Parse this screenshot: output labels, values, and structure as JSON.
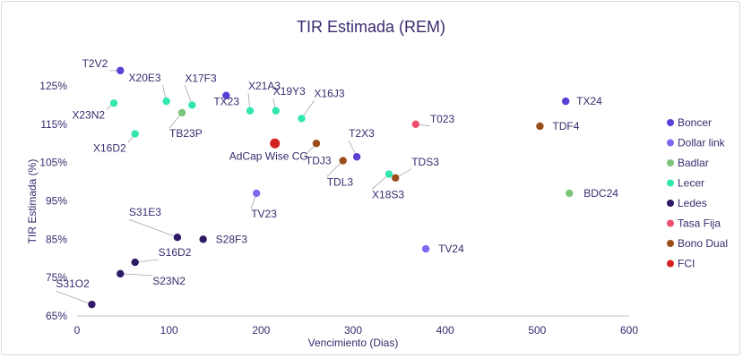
{
  "chart_data": {
    "type": "scatter",
    "title": "TIR Estimada (REM)",
    "xlabel": "Vencimiento (Dias)",
    "ylabel": "TIR Estimada (%)",
    "xlim": [
      0,
      600
    ],
    "ylim": [
      65,
      130
    ],
    "xticks": [
      0,
      100,
      200,
      300,
      400,
      500,
      600
    ],
    "xtick_labels": [
      "0",
      "100",
      "200",
      "300",
      "400",
      "500",
      "600"
    ],
    "yticks": [
      65,
      75,
      85,
      95,
      105,
      115,
      125
    ],
    "ytick_labels": [
      "65%",
      "75%",
      "85%",
      "95%",
      "105%",
      "115%",
      "125%"
    ],
    "grid": false,
    "legend_position": "right",
    "series": [
      {
        "name": "Boncer",
        "color": "#5b3fd6",
        "points": [
          {
            "label": "T2V2",
            "x": 47,
            "y": 129
          },
          {
            "label": "TX23",
            "x": 162,
            "y": 122.5
          },
          {
            "label": "T2X3",
            "x": 304,
            "y": 106.5
          },
          {
            "label": "TX24",
            "x": 531,
            "y": 121
          }
        ]
      },
      {
        "name": "Dollar link",
        "color": "#7b6bf0",
        "points": [
          {
            "label": "TV23",
            "x": 195,
            "y": 97
          },
          {
            "label": "TV24",
            "x": 379,
            "y": 82.5
          }
        ]
      },
      {
        "name": "Badlar",
        "color": "#7dc47b",
        "points": [
          {
            "label": "TB23P",
            "x": 114,
            "y": 118
          },
          {
            "label": "BDC24",
            "x": 535,
            "y": 97
          }
        ]
      },
      {
        "name": "Lecer",
        "color": "#33e6b0",
        "points": [
          {
            "label": "X23N2",
            "x": 40,
            "y": 120.5
          },
          {
            "label": "X20E3",
            "x": 97,
            "y": 121
          },
          {
            "label": "X17F3",
            "x": 125,
            "y": 120
          },
          {
            "label": "X16D2",
            "x": 63,
            "y": 112.5
          },
          {
            "label": "X21A3",
            "x": 188,
            "y": 118.5
          },
          {
            "label": "X19Y3",
            "x": 216,
            "y": 118.5
          },
          {
            "label": "X16J3",
            "x": 244,
            "y": 116.5
          },
          {
            "label": "X18S3",
            "x": 339,
            "y": 102
          }
        ]
      },
      {
        "name": "Ledes",
        "color": "#2e1a66",
        "points": [
          {
            "label": "S31E3",
            "x": 109,
            "y": 85.5
          },
          {
            "label": "S28F3",
            "x": 137,
            "y": 85
          },
          {
            "label": "S16D2",
            "x": 63,
            "y": 79
          },
          {
            "label": "S23N2",
            "x": 47,
            "y": 76
          },
          {
            "label": "S31O2",
            "x": 16,
            "y": 68
          }
        ]
      },
      {
        "name": "Tasa Fija",
        "color": "#ee4f6e",
        "points": [
          {
            "label": "T023",
            "x": 368,
            "y": 115
          }
        ]
      },
      {
        "name": "Bono Dual",
        "color": "#9a4d1a",
        "points": [
          {
            "label": "TDJ3",
            "x": 260,
            "y": 110
          },
          {
            "label": "TDL3",
            "x": 289,
            "y": 105.5
          },
          {
            "label": "TDS3",
            "x": 346,
            "y": 101
          },
          {
            "label": "TDF4",
            "x": 503,
            "y": 114.5
          }
        ]
      },
      {
        "name": "FCI",
        "color": "#d42222",
        "points": [
          {
            "label": "AdCap Wise CG",
            "x": 215,
            "y": 110,
            "size": "large"
          }
        ]
      }
    ]
  }
}
